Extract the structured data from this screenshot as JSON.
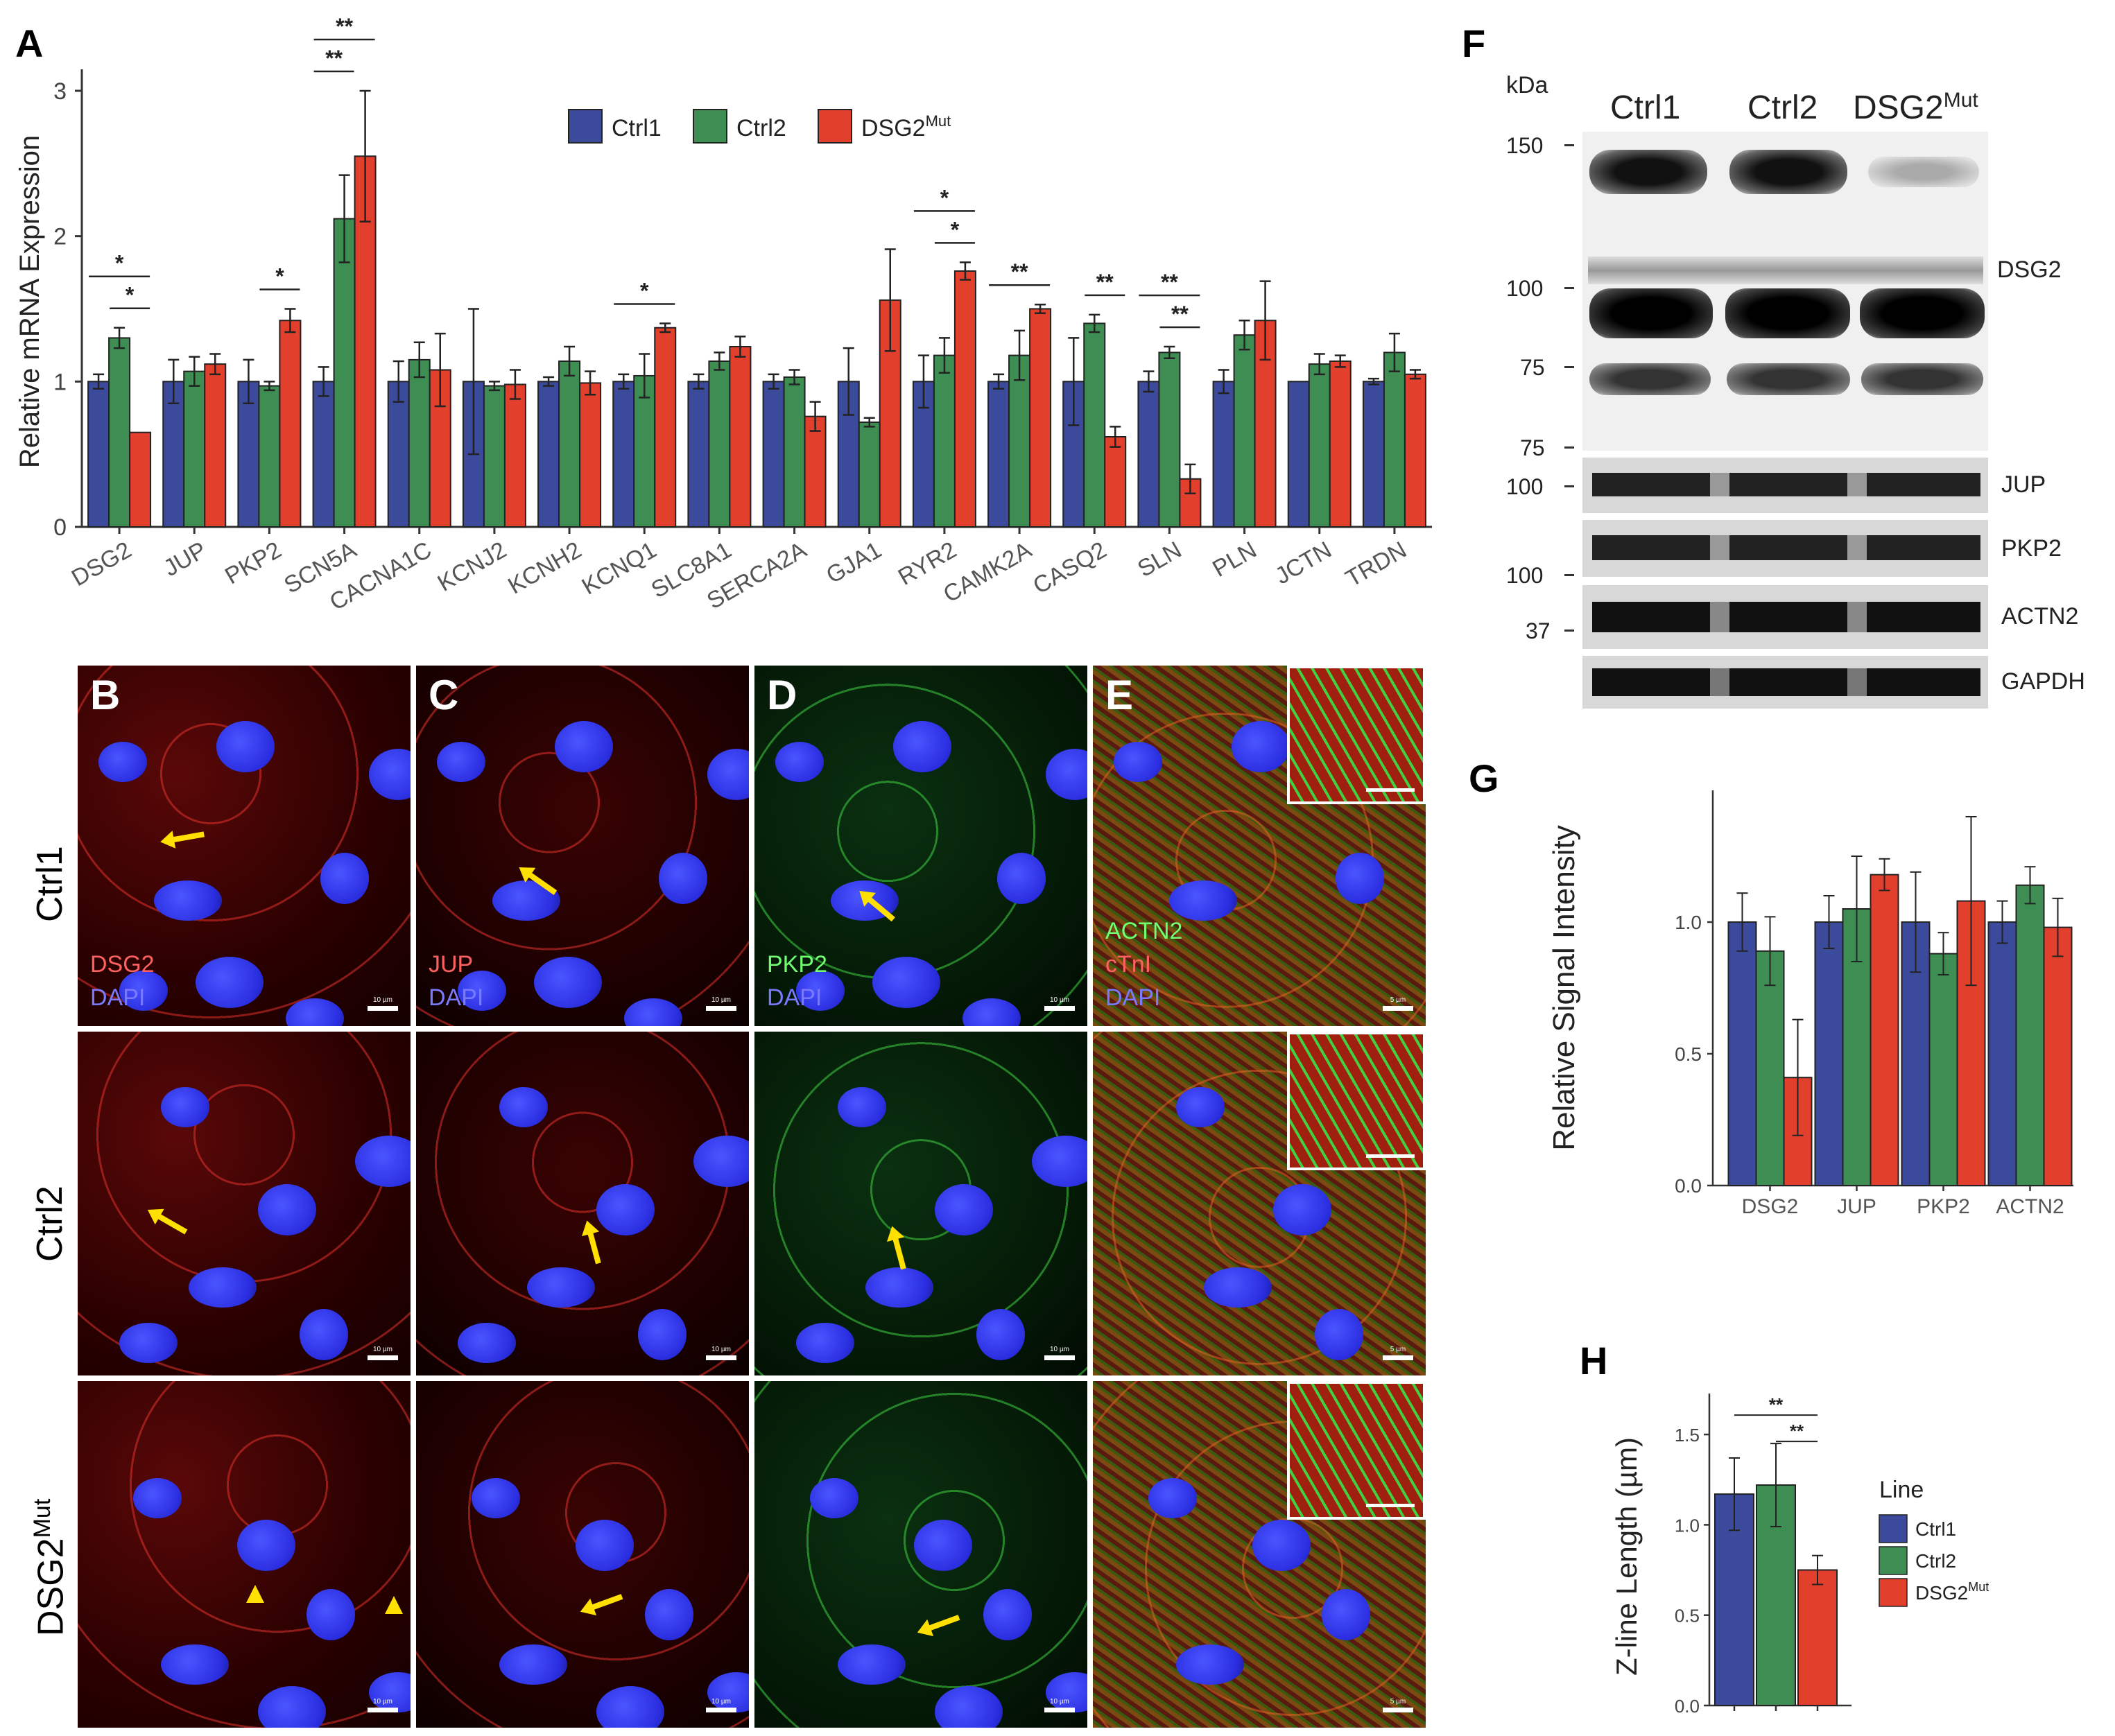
{
  "panels": {
    "A": "A",
    "B": "B",
    "C": "C",
    "D": "D",
    "E": "E",
    "F": "F",
    "G": "G",
    "H": "H"
  },
  "legend": {
    "series": [
      "Ctrl1",
      "Ctrl2",
      "DSG2"
    ],
    "mut_sup": "Mut",
    "title_h": "Line"
  },
  "colors": {
    "ctrl1": "#3b4a9a",
    "ctrl2": "#3e8e54",
    "mut": "#e23f2d"
  },
  "chart_data": [
    {
      "type": "bar",
      "ylabel": "Relative mRNA Expression",
      "ylim": [
        0,
        3.1
      ],
      "yticks": [
        0,
        1,
        2,
        3
      ],
      "categories": [
        "DSG2",
        "JUP",
        "PKP2",
        "SCN5A",
        "CACNA1C",
        "KCNJ2",
        "KCNH2",
        "KCNQ1",
        "SLC8A1",
        "SERCA2A",
        "GJA1",
        "RYR2",
        "CAMK2A",
        "CASQ2",
        "SLN",
        "PLN",
        "JCTN",
        "TRDN"
      ],
      "series": [
        {
          "name": "Ctrl1",
          "values": [
            1,
            1,
            1,
            1,
            1,
            1,
            1,
            1,
            1,
            1,
            1,
            1,
            1,
            1,
            1,
            1,
            1,
            1
          ],
          "errors": [
            0.05,
            0.15,
            0.15,
            0.1,
            0.14,
            0.5,
            0.03,
            0.05,
            0.05,
            0.05,
            0.23,
            0.18,
            0.05,
            0.3,
            0.07,
            0.08,
            0,
            0.02
          ]
        },
        {
          "name": "Ctrl2",
          "values": [
            1.3,
            1.07,
            0.97,
            2.12,
            1.15,
            0.97,
            1.14,
            1.04,
            1.14,
            1.03,
            0.72,
            1.18,
            1.18,
            1.4,
            1.2,
            1.32,
            1.12,
            1.2
          ],
          "errors": [
            0.07,
            0.1,
            0.03,
            0.3,
            0.12,
            0.03,
            0.1,
            0.15,
            0.06,
            0.05,
            0.03,
            0.12,
            0.17,
            0.06,
            0.04,
            0.1,
            0.07,
            0.13
          ]
        },
        {
          "name": "DSG2Mut",
          "values": [
            0.65,
            1.12,
            1.42,
            2.55,
            1.08,
            0.98,
            0.99,
            1.37,
            1.24,
            0.76,
            1.56,
            1.76,
            1.5,
            0.62,
            0.33,
            1.42,
            1.14,
            1.05
          ],
          "errors": [
            0,
            0.07,
            0.08,
            0.45,
            0.25,
            0.1,
            0.08,
            0.03,
            0.07,
            0.1,
            0.35,
            0.06,
            0.03,
            0.07,
            0.1,
            0.27,
            0.04,
            0.03
          ]
        }
      ],
      "significance": [
        {
          "category": "DSG2",
          "pairs": [
            [
              "Ctrl1",
              "DSG2Mut",
              "*"
            ],
            [
              "Ctrl2",
              "DSG2Mut",
              "*"
            ]
          ]
        },
        {
          "category": "PKP2",
          "pairs": [
            [
              "Ctrl2",
              "DSG2Mut",
              "*"
            ]
          ]
        },
        {
          "category": "SCN5A",
          "pairs": [
            [
              "Ctrl1",
              "DSG2Mut",
              "**"
            ],
            [
              "Ctrl1",
              "Ctrl2",
              "**"
            ]
          ]
        },
        {
          "category": "KCNQ1",
          "pairs": [
            [
              "Ctrl1",
              "DSG2Mut",
              "*"
            ]
          ]
        },
        {
          "category": "RYR2",
          "pairs": [
            [
              "Ctrl1",
              "DSG2Mut",
              "*"
            ],
            [
              "Ctrl2",
              "DSG2Mut",
              "*"
            ]
          ]
        },
        {
          "category": "CAMK2A",
          "pairs": [
            [
              "Ctrl1",
              "DSG2Mut",
              "**"
            ]
          ]
        },
        {
          "category": "CASQ2",
          "pairs": [
            [
              "Ctrl2",
              "DSG2Mut",
              "**"
            ]
          ]
        },
        {
          "category": "SLN",
          "pairs": [
            [
              "Ctrl1",
              "DSG2Mut",
              "**"
            ],
            [
              "Ctrl2",
              "DSG2Mut",
              "**"
            ]
          ]
        }
      ],
      "legend_position": "top"
    },
    {
      "type": "bar",
      "ylabel": "Relative Signal Intensity",
      "ylim": [
        0,
        1.5
      ],
      "yticks": [
        0.0,
        0.5,
        1.0
      ],
      "ytick_labels": [
        "0.0",
        "0.5",
        "1.0"
      ],
      "categories": [
        "DSG2",
        "JUP",
        "PKP2",
        "ACTN2"
      ],
      "series": [
        {
          "name": "Ctrl1",
          "values": [
            1.0,
            1.0,
            1.0,
            1.0
          ],
          "errors": [
            0.11,
            0.1,
            0.19,
            0.08
          ]
        },
        {
          "name": "Ctrl2",
          "values": [
            0.89,
            1.05,
            0.88,
            1.14
          ],
          "errors": [
            0.13,
            0.2,
            0.08,
            0.07
          ]
        },
        {
          "name": "DSG2Mut",
          "values": [
            0.41,
            1.18,
            1.08,
            0.98
          ],
          "errors": [
            0.22,
            0.06,
            0.32,
            0.11
          ]
        }
      ]
    },
    {
      "type": "bar",
      "ylabel": "Z-line Length (µm)",
      "ylim": [
        0,
        1.65
      ],
      "yticks": [
        0.0,
        0.5,
        1.0,
        1.5
      ],
      "ytick_labels": [
        "0.0",
        "0.5",
        "1.0",
        "1.5"
      ],
      "categories": [
        "Ctrl1",
        "Ctrl2",
        "DSG2Mut"
      ],
      "series": [
        {
          "name": "Line",
          "values": [
            1.17,
            1.22,
            0.75
          ],
          "errors": [
            0.2,
            0.23,
            0.08
          ]
        }
      ],
      "significance": [
        [
          "Ctrl1",
          "DSG2Mut",
          "**"
        ],
        [
          "Ctrl2",
          "DSG2Mut",
          "**"
        ]
      ],
      "legend_position": "right"
    }
  ],
  "western": {
    "kda_label": "kDa",
    "lanes": [
      "Ctrl1",
      "Ctrl2",
      "DSG2"
    ],
    "markers": [
      "150",
      "100",
      "75",
      "75",
      "100",
      "100",
      "37"
    ],
    "proteins": [
      "DSG2",
      "JUP",
      "PKP2",
      "ACTN2",
      "GAPDH"
    ]
  },
  "micro": {
    "rows": [
      "Ctrl1",
      "Ctrl2",
      "DSG2"
    ],
    "stains": {
      "b": [
        "DSG2",
        "DAPI"
      ],
      "c": [
        "JUP",
        "DAPI"
      ],
      "d": [
        "PKP2",
        "DAPI"
      ],
      "e": [
        "ACTN2",
        "cTnI",
        "DAPI"
      ]
    },
    "scale_10": "10 µm",
    "scale_5": "5 µm"
  }
}
